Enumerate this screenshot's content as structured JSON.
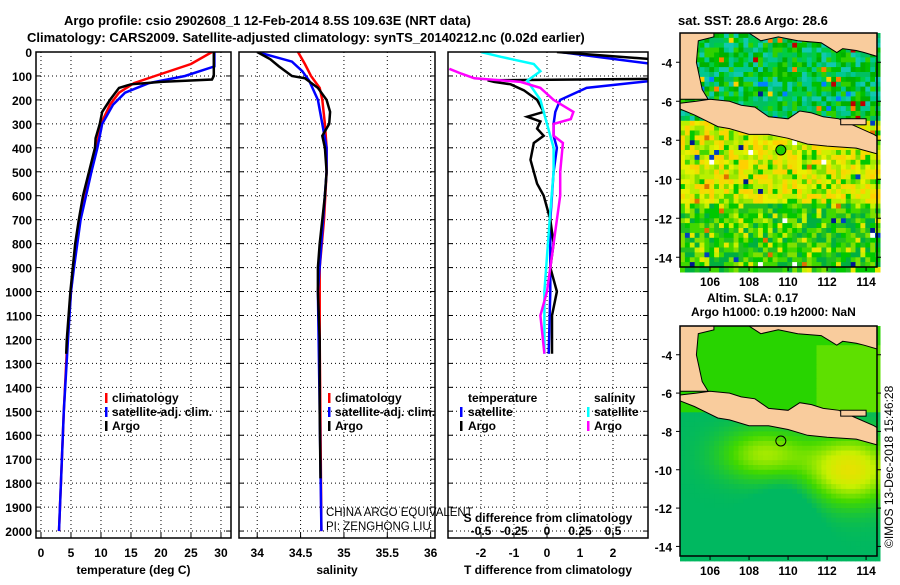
{
  "title": {
    "line1": "Argo profile: csio 2902608_1 12-Feb-2014 8.5S 109.63E (NRT data)",
    "line2": "Climatology: CARS2009. Satellite-adjusted climatology: synTS_20140212.nc (0.02d earlier)"
  },
  "colors": {
    "climatology": "#ff0000",
    "satellite": "#0000ff",
    "argo": "#000000",
    "sal_satellite": "#00ffff",
    "sal_argo": "#ff00ff",
    "land": "#f9cc9d"
  },
  "legend_profiles": {
    "climatology": "climatology",
    "satellite": "satellite-adj. clim.",
    "argo": "Argo"
  },
  "legend_diff": {
    "temperature": "temperature",
    "salinity": "salinity",
    "satellite": "satellite",
    "argo": "Argo"
  },
  "credit": {
    "line1": "CHINA ARGO EQUIVALENT",
    "line2": "PI: ZENGHONG LIU"
  },
  "chart_data": [
    {
      "type": "line",
      "name": "temperature",
      "xlabel": "temperature (deg C)",
      "ylabel": "",
      "xticks": [
        0,
        5,
        10,
        15,
        20,
        25,
        30
      ],
      "yticks": [
        0,
        100,
        200,
        300,
        400,
        500,
        600,
        700,
        800,
        900,
        1000,
        1100,
        1200,
        1300,
        1400,
        1500,
        1600,
        1700,
        1800,
        1900,
        2000
      ],
      "xlim": [
        -0.83,
        31.67
      ],
      "ylim": [
        2029,
        0
      ],
      "grid": true,
      "legend": "bottom-right",
      "series": [
        {
          "name": "climatology",
          "depth": [
            0,
            50,
            100,
            130,
            170,
            220,
            300,
            400,
            500,
            700,
            900,
            1000,
            1200,
            1500,
            2000
          ],
          "values": [
            28.5,
            25,
            19,
            15.5,
            13,
            11.5,
            10,
            9.2,
            8.2,
            6.5,
            5.4,
            5.0,
            4.4,
            3.8,
            3.0
          ]
        },
        {
          "name": "satellite-adj. clim.",
          "depth": [
            0,
            60,
            100,
            130,
            170,
            220,
            300,
            400,
            500,
            700,
            900,
            1000,
            1200,
            1500,
            2000
          ],
          "values": [
            28.9,
            28.9,
            24,
            18,
            14,
            12,
            10.2,
            9.4,
            8.4,
            6.6,
            5.5,
            5.0,
            4.5,
            3.8,
            3.0
          ]
        },
        {
          "name": "Argo",
          "depth": [
            0,
            100,
            115,
            125,
            135,
            150,
            200,
            250,
            300,
            360,
            400,
            500,
            600,
            700,
            800,
            900,
            1000,
            1100,
            1200,
            1260
          ],
          "values": [
            28.8,
            28.8,
            28.5,
            20,
            15,
            13,
            11.5,
            10.2,
            9.8,
            9.1,
            9.0,
            8.0,
            7.0,
            6.3,
            5.7,
            5.3,
            4.9,
            4.6,
            4.3,
            4.2
          ]
        }
      ]
    },
    {
      "type": "line",
      "name": "salinity",
      "xlabel": "salinity",
      "xticks": [
        34,
        34.5,
        35,
        35.5,
        36
      ],
      "xlim": [
        33.79,
        36.05
      ],
      "ylim": [
        2029,
        0
      ],
      "grid": true,
      "legend": "bottom-right",
      "series": [
        {
          "name": "climatology",
          "depth": [
            0,
            50,
            100,
            150,
            200,
            300,
            400,
            500,
            700,
            900,
            1200,
            2000
          ],
          "values": [
            34.47,
            34.55,
            34.62,
            34.72,
            34.75,
            34.78,
            34.8,
            34.8,
            34.77,
            34.72,
            34.72,
            34.74
          ]
        },
        {
          "name": "satellite-adj. clim.",
          "depth": [
            0,
            20,
            40,
            80,
            120,
            200,
            300,
            400,
            500,
            700,
            1000,
            1500,
            2000
          ],
          "values": [
            34.0,
            34.2,
            34.4,
            34.52,
            34.6,
            34.7,
            34.75,
            34.8,
            34.8,
            34.76,
            34.7,
            34.72,
            34.74
          ]
        },
        {
          "name": "Argo",
          "depth": [
            0,
            30,
            60,
            100,
            110,
            150,
            200,
            250,
            300,
            350,
            400,
            500,
            600,
            700,
            800,
            900,
            1000,
            1200,
            1500,
            1780
          ],
          "values": [
            34.0,
            34.15,
            34.25,
            34.4,
            34.55,
            34.7,
            34.8,
            34.84,
            34.83,
            34.75,
            34.78,
            34.8,
            34.78,
            34.75,
            34.72,
            34.7,
            34.7,
            34.72,
            34.72,
            34.73
          ]
        }
      ]
    },
    {
      "type": "line",
      "name": "difference",
      "xlabel": "T difference from climatology",
      "xlabel2": "S difference from climatology",
      "xticks": [
        -2,
        -1,
        0,
        1,
        2
      ],
      "xticks2": [
        "-0.5",
        "-0.25",
        "0",
        "0.25",
        "0.5"
      ],
      "xticks2_values": [
        -0.5,
        -0.25,
        0,
        0.25,
        0.5
      ],
      "xlim": [
        -3.0,
        3.06
      ],
      "xlim2": [
        -0.75,
        0.765
      ],
      "ylim": [
        2029,
        0
      ],
      "grid": true,
      "legend": "bottom",
      "series": [
        {
          "name": "temperature satellite",
          "axis": "T",
          "depth": [
            0,
            20,
            50,
            120,
            150,
            200,
            250,
            300,
            350,
            400,
            500,
            700,
            1000,
            1260
          ],
          "values": [
            0.4,
            1.5,
            3.2,
            3.2,
            1.2,
            0.4,
            0.25,
            0.2,
            0.2,
            0.3,
            0.2,
            0.1,
            0.1,
            0.05
          ]
        },
        {
          "name": "temperature Argo",
          "axis": "T",
          "depth": [
            0,
            30,
            112,
            118,
            125,
            135,
            160,
            200,
            250,
            270,
            290,
            320,
            350,
            380,
            450,
            500,
            550,
            600,
            700,
            800,
            900,
            1000,
            1100,
            1200,
            1260
          ],
          "values": [
            0.3,
            3.2,
            3.2,
            -1.8,
            -1.6,
            -1.1,
            -0.7,
            -0.3,
            -0.1,
            -0.6,
            -0.2,
            -0.3,
            -0.1,
            -0.4,
            -0.5,
            -0.4,
            -0.3,
            -0.1,
            0.1,
            0.2,
            0.1,
            0.3,
            0.15,
            0.15,
            0.15
          ]
        },
        {
          "name": "salinity satellite",
          "axis": "S",
          "depth": [
            0,
            20,
            50,
            80,
            100,
            120,
            200,
            300,
            400,
            500,
            700,
            1000,
            1260
          ],
          "values": [
            -0.5,
            -0.35,
            -0.1,
            -0.05,
            -0.1,
            -0.15,
            -0.05,
            0,
            0.05,
            0.05,
            0.02,
            -0.02,
            -0.02
          ]
        },
        {
          "name": "salinity Argo",
          "axis": "S",
          "depth": [
            70,
            90,
            110,
            125,
            150,
            200,
            250,
            280,
            300,
            350,
            380,
            500,
            600,
            800,
            1000,
            1100,
            1260
          ],
          "values": [
            -0.74,
            -0.65,
            -0.55,
            -0.2,
            -0.05,
            0.05,
            0.2,
            0.18,
            0.05,
            0.05,
            0.12,
            0.1,
            0.1,
            0.05,
            0,
            -0.05,
            -0.02
          ]
        }
      ]
    }
  ],
  "maps": [
    {
      "name": "sst-map",
      "title": "sat. SST: 28.6 Argo: 28.6",
      "xticks": [
        106,
        108,
        110,
        112,
        114
      ],
      "yticks": [
        -4,
        -6,
        -8,
        -10,
        -12,
        -14
      ],
      "float_lon": 109.63,
      "float_lat": -8.5
    },
    {
      "name": "sla-map",
      "title1": "Altim. SLA: 0.17",
      "title2": "Argo h1000: 0.19 h2000: NaN",
      "xticks": [
        106,
        108,
        110,
        112,
        114
      ],
      "yticks": [
        -4,
        -6,
        -8,
        -10,
        -12,
        -14
      ],
      "float_lon": 109.63,
      "float_lat": -8.5
    }
  ],
  "stamp": "©IMOS 13-Dec-2018 15:46:28"
}
